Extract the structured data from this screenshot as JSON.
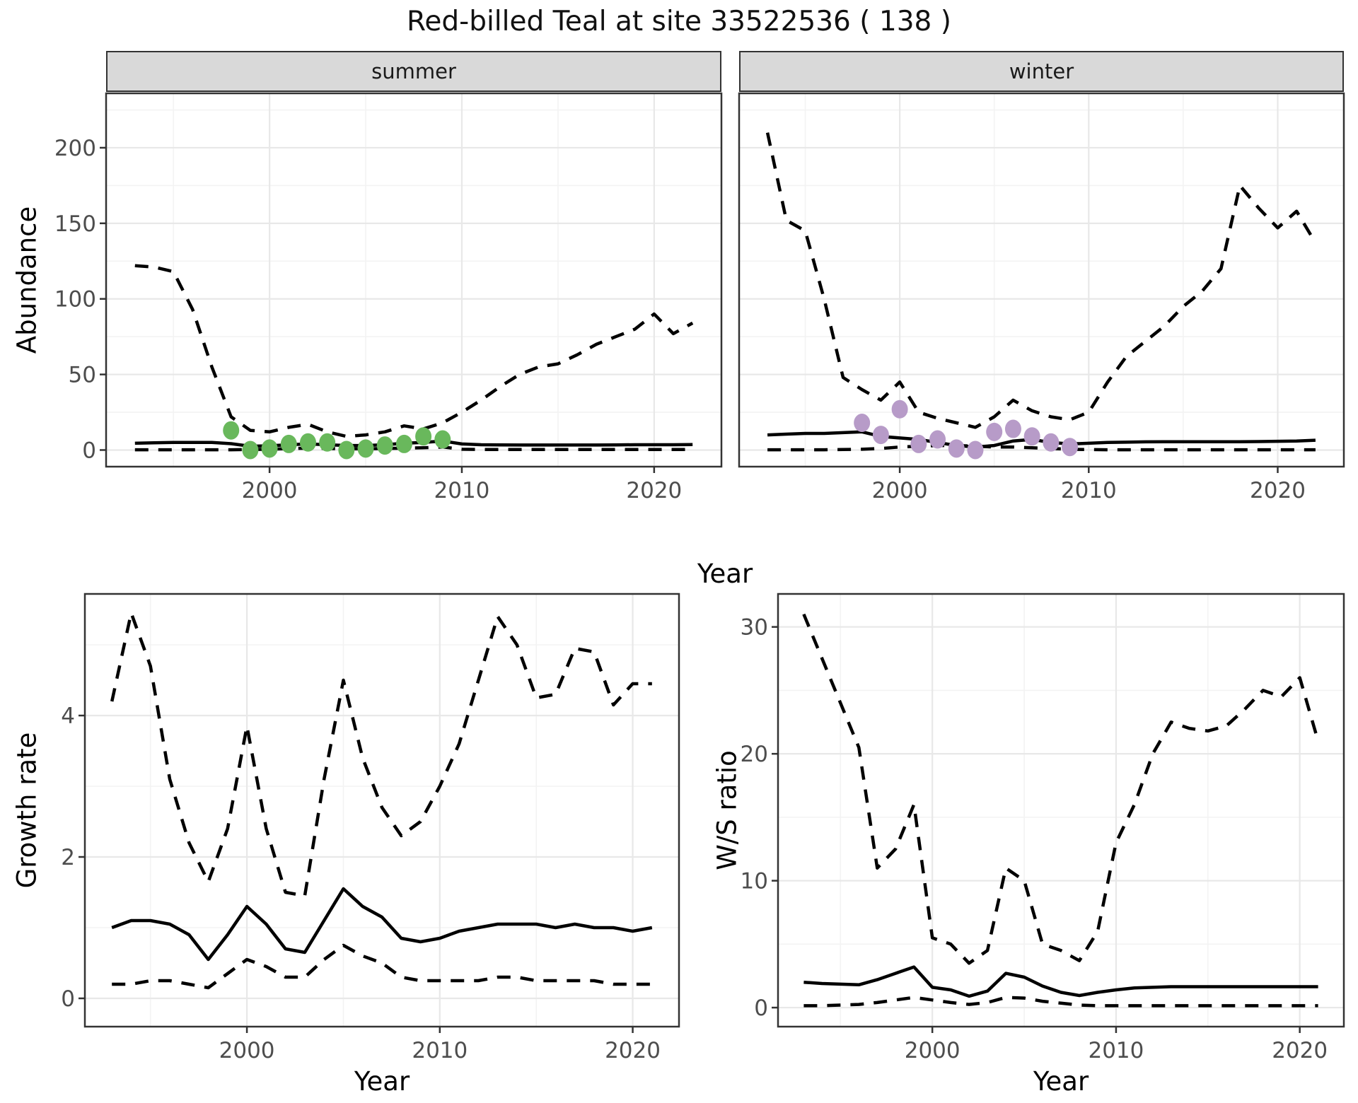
{
  "title": "Red-billed Teal at site 33522536 ( 138 )",
  "facets": {
    "summer": "summer",
    "winter": "winter"
  },
  "axis_titles": {
    "abundance": "Abundance",
    "growth": "Growth rate",
    "ws": "W/S ratio",
    "year_top": "Year",
    "year_growth": "Year",
    "year_ws": "Year"
  },
  "colors": {
    "summer_points": "#69b85c",
    "winter_points": "#b79bc8",
    "line": "#000000",
    "grid_major": "#e8e8e8",
    "grid_minor": "#f3f3f3",
    "panel_border": "#333333",
    "tick_mark": "#333333",
    "tick_label": "#4d4d4d",
    "strip_bg": "#d9d9d9"
  },
  "chart_data": [
    {
      "type": "line",
      "panel": "summer",
      "facet_label": "summer",
      "title": "Abundance - summer facet",
      "xlabel": "Year",
      "ylabel": "Abundance",
      "x": [
        1993,
        1994,
        1995,
        1996,
        1997,
        1998,
        1999,
        2000,
        2001,
        2002,
        2003,
        2004,
        2005,
        2006,
        2007,
        2008,
        2009,
        2010,
        2011,
        2012,
        2013,
        2014,
        2015,
        2016,
        2017,
        2018,
        2019,
        2020,
        2021,
        2022
      ],
      "series": [
        {
          "name": "upper-95ci",
          "style": "dashed",
          "values": [
            122,
            121,
            118,
            93,
            55,
            22,
            13,
            12,
            15,
            17,
            12,
            9,
            10,
            12,
            16,
            14,
            18,
            25,
            33,
            42,
            50,
            55,
            57,
            63,
            70,
            75,
            80,
            90,
            77,
            84
          ]
        },
        {
          "name": "median",
          "style": "solid",
          "values": [
            4.5,
            4.8,
            5,
            5,
            5,
            4.2,
            2.5,
            2.8,
            3.5,
            4,
            3.5,
            3,
            3,
            3.5,
            4.5,
            5,
            6,
            4,
            3.5,
            3.4,
            3.3,
            3.3,
            3.3,
            3.3,
            3.3,
            3.4,
            3.5,
            3.5,
            3.5,
            3.6
          ]
        },
        {
          "name": "lower-95ci",
          "style": "dashed",
          "values": [
            0.2,
            0.2,
            0.2,
            0.2,
            0.2,
            0.2,
            0.3,
            0.5,
            1,
            1.2,
            1,
            0.8,
            0.8,
            1,
            1.2,
            1.5,
            2,
            0.5,
            0.3,
            0.3,
            0.3,
            0.3,
            0.3,
            0.3,
            0.3,
            0.3,
            0.3,
            0.3,
            0.3,
            0.3
          ]
        }
      ],
      "points": {
        "name": "observed-counts-summer",
        "color_key": "summer_points",
        "x": [
          1998,
          1999,
          2000,
          2001,
          2002,
          2003,
          2004,
          2005,
          2006,
          2007,
          2008,
          2009
        ],
        "y": [
          13,
          0,
          1,
          4,
          5,
          5,
          0,
          1,
          3,
          4,
          9,
          7
        ]
      },
      "xlim": [
        1991.5,
        2023.5
      ],
      "ylim": [
        -11,
        236
      ],
      "x_ticks": [
        2000,
        2010,
        2020
      ],
      "x_minor": [
        1995,
        2005,
        2015
      ],
      "y_ticks": [
        0,
        50,
        100,
        150,
        200
      ],
      "y_minor": [
        25,
        75,
        125,
        175,
        225
      ],
      "show_y_labels": true,
      "grid": true,
      "legend": "none"
    },
    {
      "type": "line",
      "panel": "winter",
      "facet_label": "winter",
      "title": "Abundance - winter facet",
      "xlabel": "Year",
      "ylabel": "Abundance",
      "x": [
        1993,
        1994,
        1995,
        1996,
        1997,
        1998,
        1999,
        2000,
        2001,
        2002,
        2003,
        2004,
        2005,
        2006,
        2007,
        2008,
        2009,
        2010,
        2011,
        2012,
        2013,
        2014,
        2015,
        2016,
        2017,
        2018,
        2019,
        2020,
        2021,
        2022
      ],
      "series": [
        {
          "name": "upper-95ci",
          "style": "dashed",
          "values": [
            210,
            152,
            145,
            100,
            48,
            40,
            33,
            45,
            25,
            21,
            18,
            15,
            22,
            33,
            26,
            22,
            20,
            25,
            45,
            62,
            72,
            82,
            95,
            105,
            120,
            175,
            160,
            147,
            158,
            137
          ]
        },
        {
          "name": "median",
          "style": "solid",
          "values": [
            10,
            10.5,
            11,
            11,
            11.5,
            12,
            9,
            8,
            7,
            5,
            3,
            2,
            3,
            6,
            7,
            5,
            4,
            4.5,
            5,
            5.2,
            5.4,
            5.5,
            5.5,
            5.5,
            5.5,
            5.5,
            5.6,
            5.8,
            6,
            6.5
          ]
        },
        {
          "name": "lower-95ci",
          "style": "dashed",
          "values": [
            0.2,
            0.2,
            0.2,
            0.2,
            0.3,
            0.5,
            1,
            2,
            2.5,
            3,
            3,
            2.5,
            2,
            2,
            1.5,
            1,
            0.5,
            0.3,
            0.2,
            0.2,
            0.2,
            0.2,
            0.2,
            0.2,
            0.2,
            0.2,
            0.2,
            0.2,
            0.2,
            0.2
          ]
        }
      ],
      "points": {
        "name": "observed-counts-winter",
        "color_key": "winter_points",
        "x": [
          1998,
          1999,
          2000,
          2001,
          2002,
          2003,
          2004,
          2005,
          2006,
          2007,
          2008,
          2009
        ],
        "y": [
          18,
          10,
          27,
          4,
          7,
          1,
          0,
          12,
          14,
          9,
          5,
          2
        ]
      },
      "xlim": [
        1991.5,
        2023.5
      ],
      "ylim": [
        -11,
        236
      ],
      "x_ticks": [
        2000,
        2010,
        2020
      ],
      "x_minor": [
        1995,
        2005,
        2015
      ],
      "y_ticks": [
        0,
        50,
        100,
        150,
        200
      ],
      "y_minor": [
        25,
        75,
        125,
        175,
        225
      ],
      "show_y_labels": false,
      "grid": true,
      "legend": "none"
    },
    {
      "type": "line",
      "panel": "growth",
      "facet_label": "",
      "title": "Growth rate",
      "xlabel": "Year",
      "ylabel": "Growth rate",
      "x": [
        1993,
        1994,
        1995,
        1996,
        1997,
        1998,
        1999,
        2000,
        2001,
        2002,
        2003,
        2004,
        2005,
        2006,
        2007,
        2008,
        2009,
        2010,
        2011,
        2012,
        2013,
        2014,
        2015,
        2016,
        2017,
        2018,
        2019,
        2020,
        2021
      ],
      "series": [
        {
          "name": "upper-95ci",
          "style": "dashed",
          "values": [
            4.2,
            5.45,
            4.7,
            3.1,
            2.2,
            1.65,
            2.4,
            3.85,
            2.4,
            1.5,
            1.45,
            3.1,
            4.5,
            3.4,
            2.7,
            2.3,
            2.5,
            3.0,
            3.6,
            4.5,
            5.4,
            5.0,
            4.25,
            4.3,
            4.95,
            4.9,
            4.15,
            4.45,
            4.45
          ]
        },
        {
          "name": "median",
          "style": "solid",
          "values": [
            1.0,
            1.1,
            1.1,
            1.05,
            0.9,
            0.55,
            0.9,
            1.3,
            1.05,
            0.7,
            0.65,
            1.1,
            1.55,
            1.3,
            1.15,
            0.85,
            0.8,
            0.85,
            0.95,
            1.0,
            1.05,
            1.05,
            1.05,
            1.0,
            1.05,
            1.0,
            1.0,
            0.95,
            1.0
          ]
        },
        {
          "name": "lower-95ci",
          "style": "dashed",
          "values": [
            0.2,
            0.2,
            0.25,
            0.25,
            0.2,
            0.15,
            0.35,
            0.55,
            0.45,
            0.3,
            0.3,
            0.55,
            0.75,
            0.6,
            0.5,
            0.3,
            0.25,
            0.25,
            0.25,
            0.25,
            0.3,
            0.3,
            0.25,
            0.25,
            0.25,
            0.25,
            0.2,
            0.2,
            0.2
          ]
        }
      ],
      "points": null,
      "xlim": [
        1991.6,
        2022.4
      ],
      "ylim": [
        -0.4,
        5.72
      ],
      "x_ticks": [
        2000,
        2010,
        2020
      ],
      "x_minor": [
        1995,
        2005,
        2015
      ],
      "y_ticks": [
        0,
        2,
        4
      ],
      "y_minor": [
        1,
        3,
        5
      ],
      "show_y_labels": true,
      "grid": true,
      "legend": "none"
    },
    {
      "type": "line",
      "panel": "ws",
      "facet_label": "",
      "title": "W/S ratio",
      "xlabel": "Year",
      "ylabel": "W/S ratio",
      "x": [
        1993,
        1994,
        1995,
        1996,
        1997,
        1998,
        1999,
        2000,
        2001,
        2002,
        2003,
        2004,
        2005,
        2006,
        2007,
        2008,
        2009,
        2010,
        2011,
        2012,
        2013,
        2014,
        2015,
        2016,
        2017,
        2018,
        2019,
        2020,
        2021
      ],
      "series": [
        {
          "name": "upper-95ci",
          "style": "dashed",
          "values": [
            31,
            27.5,
            24,
            20.5,
            11,
            12.5,
            16,
            5.5,
            5,
            3.5,
            4.5,
            11,
            10,
            5,
            4.5,
            3.7,
            6,
            13,
            16,
            20,
            22.5,
            22,
            21.8,
            22.2,
            23.5,
            25,
            24.5,
            26,
            21
          ]
        },
        {
          "name": "median",
          "style": "solid",
          "values": [
            2.0,
            1.9,
            1.85,
            1.8,
            2.2,
            2.7,
            3.2,
            1.6,
            1.4,
            0.9,
            1.3,
            2.7,
            2.4,
            1.7,
            1.2,
            0.95,
            1.2,
            1.4,
            1.55,
            1.6,
            1.65,
            1.65,
            1.65,
            1.65,
            1.65,
            1.65,
            1.65,
            1.65,
            1.65
          ]
        },
        {
          "name": "lower-95ci",
          "style": "dashed",
          "values": [
            0.15,
            0.15,
            0.2,
            0.25,
            0.4,
            0.6,
            0.8,
            0.6,
            0.4,
            0.25,
            0.4,
            0.8,
            0.75,
            0.5,
            0.35,
            0.2,
            0.15,
            0.15,
            0.15,
            0.15,
            0.15,
            0.15,
            0.15,
            0.15,
            0.15,
            0.15,
            0.15,
            0.15,
            0.15
          ]
        }
      ],
      "points": null,
      "xlim": [
        1991.6,
        2022.4
      ],
      "ylim": [
        -1.5,
        32.6
      ],
      "x_ticks": [
        2000,
        2010,
        2020
      ],
      "x_minor": [
        1995,
        2005,
        2015
      ],
      "y_ticks": [
        0,
        10,
        20,
        30
      ],
      "y_minor": [
        5,
        15,
        25
      ],
      "show_y_labels": true,
      "grid": true,
      "legend": "none"
    }
  ]
}
